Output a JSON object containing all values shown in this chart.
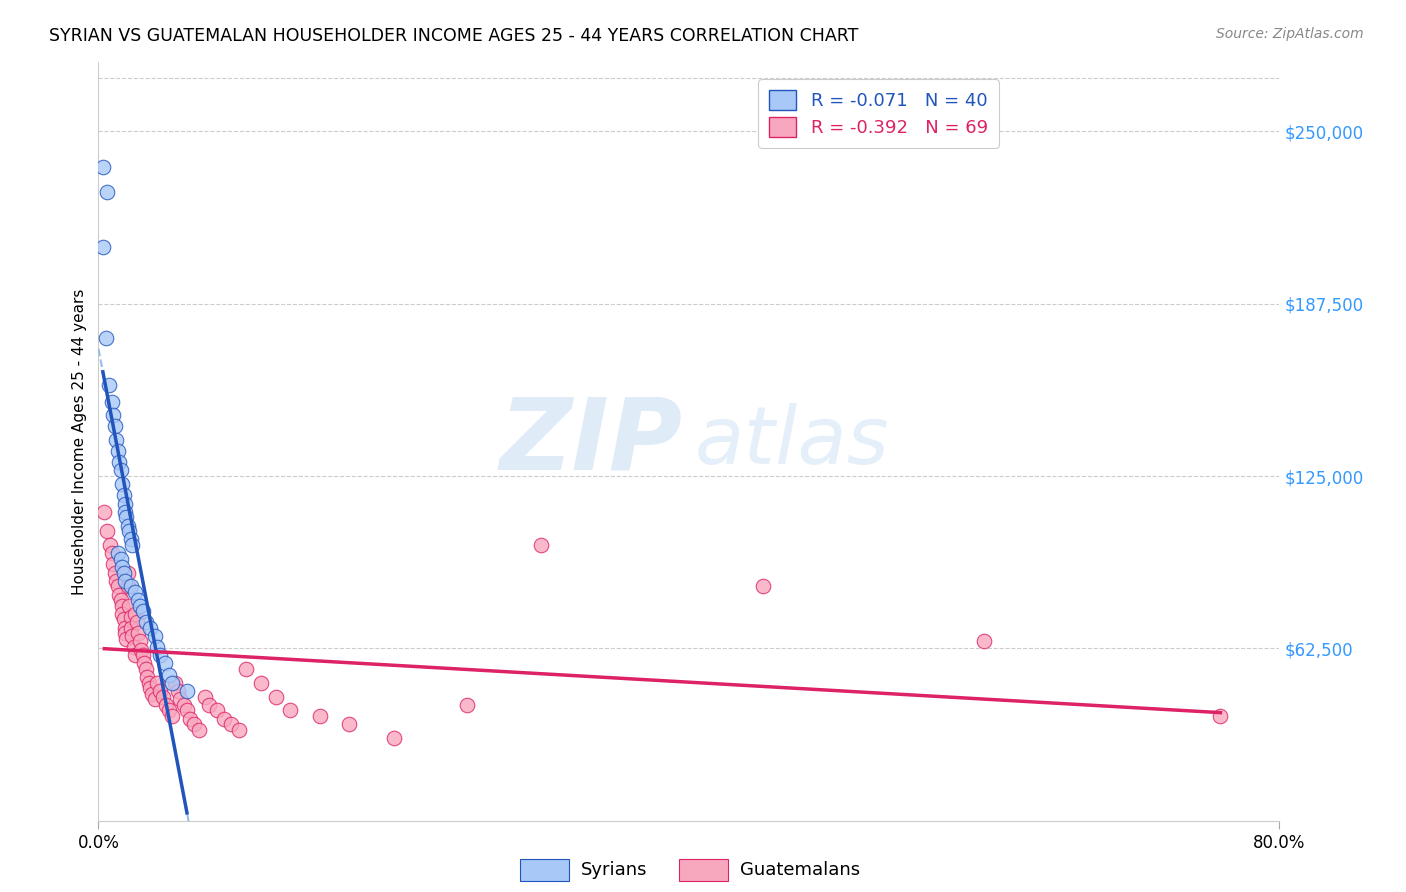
{
  "title": "SYRIAN VS GUATEMALAN HOUSEHOLDER INCOME AGES 25 - 44 YEARS CORRELATION CHART",
  "source": "Source: ZipAtlas.com",
  "ylabel": "Householder Income Ages 25 - 44 years",
  "ytick_labels": [
    "$62,500",
    "$125,000",
    "$187,500",
    "$250,000"
  ],
  "ytick_values": [
    62500,
    125000,
    187500,
    250000
  ],
  "xmin": 0.0,
  "xmax": 0.8,
  "ymin": 0,
  "ymax": 275000,
  "legend_entry1": "R = -0.071   N = 40",
  "legend_entry2": "R = -0.392   N = 69",
  "legend_label1": "Syrians",
  "legend_label2": "Guatemalans",
  "syrian_color": "#a8c8f8",
  "guatemalan_color": "#f8a8be",
  "syrian_line_color": "#2255bb",
  "guatemalan_line_color": "#dd2266",
  "dashed_line_color": "#99bbee",
  "syrian_x": [
    0.003,
    0.006,
    0.003,
    0.005,
    0.007,
    0.009,
    0.01,
    0.011,
    0.012,
    0.013,
    0.014,
    0.015,
    0.016,
    0.017,
    0.018,
    0.018,
    0.019,
    0.02,
    0.021,
    0.022,
    0.023,
    0.013,
    0.015,
    0.016,
    0.017,
    0.018,
    0.022,
    0.025,
    0.027,
    0.028,
    0.03,
    0.032,
    0.035,
    0.038,
    0.04,
    0.042,
    0.045,
    0.048,
    0.05,
    0.06
  ],
  "syrian_y": [
    237000,
    228000,
    208000,
    175000,
    158000,
    152000,
    147000,
    143000,
    138000,
    134000,
    130000,
    127000,
    122000,
    118000,
    115000,
    112000,
    110000,
    107000,
    105000,
    102000,
    100000,
    97000,
    95000,
    92000,
    90000,
    87000,
    85000,
    83000,
    80000,
    78000,
    76000,
    72000,
    70000,
    67000,
    63000,
    60000,
    57000,
    53000,
    50000,
    47000
  ],
  "guatemalan_x": [
    0.004,
    0.006,
    0.008,
    0.009,
    0.01,
    0.011,
    0.012,
    0.013,
    0.014,
    0.015,
    0.016,
    0.016,
    0.017,
    0.018,
    0.018,
    0.019,
    0.02,
    0.02,
    0.021,
    0.022,
    0.022,
    0.023,
    0.024,
    0.025,
    0.025,
    0.026,
    0.027,
    0.028,
    0.029,
    0.03,
    0.031,
    0.032,
    0.033,
    0.034,
    0.035,
    0.036,
    0.038,
    0.04,
    0.042,
    0.044,
    0.046,
    0.048,
    0.05,
    0.052,
    0.054,
    0.055,
    0.058,
    0.06,
    0.062,
    0.065,
    0.068,
    0.072,
    0.075,
    0.08,
    0.085,
    0.09,
    0.095,
    0.1,
    0.11,
    0.12,
    0.13,
    0.15,
    0.17,
    0.2,
    0.25,
    0.3,
    0.45,
    0.6,
    0.76
  ],
  "guatemalan_y": [
    112000,
    105000,
    100000,
    97000,
    93000,
    90000,
    87000,
    85000,
    82000,
    80000,
    78000,
    75000,
    73000,
    70000,
    68000,
    66000,
    90000,
    85000,
    78000,
    74000,
    70000,
    67000,
    63000,
    60000,
    75000,
    72000,
    68000,
    65000,
    62000,
    60000,
    57000,
    55000,
    52000,
    50000,
    48000,
    46000,
    44000,
    50000,
    47000,
    45000,
    42000,
    40000,
    38000,
    50000,
    47000,
    44000,
    42000,
    40000,
    37000,
    35000,
    33000,
    45000,
    42000,
    40000,
    37000,
    35000,
    33000,
    55000,
    50000,
    45000,
    40000,
    38000,
    35000,
    30000,
    42000,
    100000,
    85000,
    65000,
    38000
  ]
}
